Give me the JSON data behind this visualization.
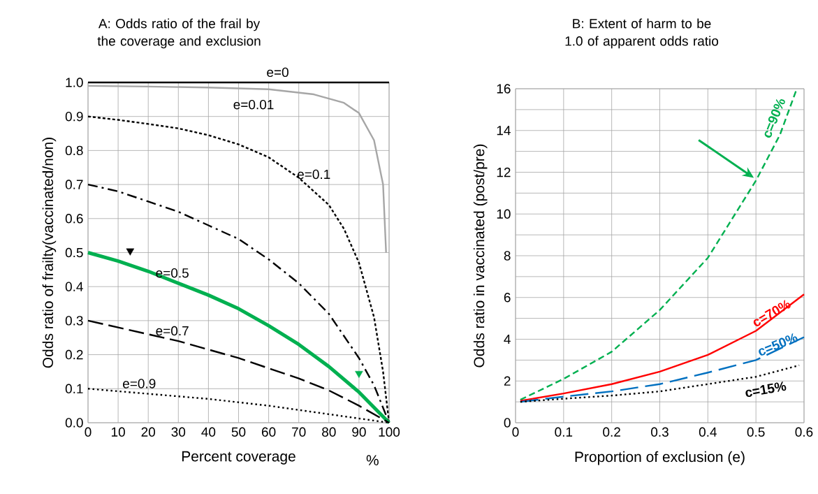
{
  "chart_data": [
    {
      "type": "line",
      "title": "A: Odds ratio of the frail by the coverage and exclusion",
      "xlabel": "Percent coverage",
      "ylabel": "Odds ratio of frailty(vaccinated/non)",
      "annotations": [
        "%"
      ],
      "grid": true,
      "marker": "none",
      "xlim": [
        0,
        100
      ],
      "ylim": [
        0,
        1
      ],
      "xticks": [
        0,
        10,
        20,
        30,
        40,
        50,
        60,
        70,
        80,
        90,
        100
      ],
      "yticks": [
        {
          "value": 0,
          "label": "0.0"
        },
        0.1,
        0.2,
        0.3,
        0.4,
        0.5,
        0.6,
        0.7,
        0.8,
        0.9,
        {
          "value": 1,
          "label": "1.0"
        }
      ],
      "series": [
        {
          "name": "e=0",
          "color": "#000000",
          "line_style": "solid",
          "x": [
            0,
            100
          ],
          "values": [
            1,
            1
          ]
        },
        {
          "name": "e=0.01",
          "color": "#a6a6a6",
          "line_style": "solid",
          "x": [
            0,
            20,
            40,
            60,
            75,
            85,
            90,
            95,
            98,
            99
          ],
          "values": [
            0.99,
            0.988,
            0.985,
            0.98,
            0.965,
            0.94,
            0.91,
            0.83,
            0.7,
            0.5
          ]
        },
        {
          "name": "e=0.1",
          "color": "#000000",
          "line_style": "dashed",
          "x": [
            0,
            10,
            20,
            30,
            40,
            50,
            60,
            70,
            80,
            85,
            90,
            95,
            98,
            100
          ],
          "values": [
            0.9,
            0.89,
            0.878,
            0.865,
            0.845,
            0.818,
            0.78,
            0.72,
            0.64,
            0.57,
            0.47,
            0.31,
            0.15,
            0
          ]
        },
        {
          "color": "#000000",
          "line_style": "dashed",
          "x": [
            0,
            10,
            20,
            30,
            40,
            50,
            60,
            70,
            80,
            90,
            95,
            100
          ],
          "values": [
            0.7,
            0.68,
            0.65,
            0.62,
            0.58,
            0.54,
            0.48,
            0.41,
            0.32,
            0.19,
            0.11,
            0
          ]
        },
        {
          "name": "e=0.5",
          "color": "#00b050",
          "line_style": "solid",
          "x": [
            0,
            10,
            20,
            30,
            40,
            50,
            60,
            70,
            80,
            90,
            100
          ],
          "values": [
            0.5,
            0.475,
            0.445,
            0.41,
            0.375,
            0.335,
            0.285,
            0.23,
            0.165,
            0.09,
            0
          ]
        },
        {
          "name": "e=0.7",
          "color": "#000000",
          "line_style": "dashed",
          "x": [
            0,
            10,
            20,
            30,
            40,
            50,
            60,
            70,
            80,
            90,
            100
          ],
          "values": [
            0.3,
            0.28,
            0.26,
            0.24,
            0.215,
            0.19,
            0.16,
            0.13,
            0.095,
            0.05,
            0
          ]
        },
        {
          "name": "e=0.9",
          "color": "#000000",
          "line_style": "dotted",
          "x": [
            0,
            20,
            40,
            60,
            80,
            100
          ],
          "values": [
            0.1,
            0.085,
            0.07,
            0.05,
            0.025,
            0
          ]
        },
        {
          "type": "scatter",
          "marker": "triangle",
          "color": "#000000",
          "x": [
            14
          ],
          "values": [
            0.505
          ]
        },
        {
          "type": "scatter",
          "marker": "triangle",
          "color": "#00b050",
          "x": [
            90
          ],
          "values": [
            0.145
          ]
        }
      ]
    },
    {
      "type": "line",
      "title": "B: Extent of harm to be 1.0 of apparent odds ratio",
      "xlabel": "Proportion of exclusion (e)",
      "ylabel": "Odds ratio in vaccinated (post/pre)",
      "grid": true,
      "marker": "none",
      "xlim": [
        0,
        0.6
      ],
      "ylim": [
        0,
        16
      ],
      "xticks": [
        0,
        0.1,
        0.2,
        0.3,
        0.4,
        0.5,
        0.6
      ],
      "yticks": [
        0,
        {
          "value": 1,
          "label": null
        },
        2,
        {
          "value": 3,
          "label": null
        },
        4,
        {
          "value": 5,
          "label": null
        },
        6,
        {
          "value": 7,
          "label": null
        },
        8,
        {
          "value": 9,
          "label": null
        },
        10,
        {
          "value": 11,
          "label": null
        },
        12,
        {
          "value": 13,
          "label": null
        },
        14,
        {
          "value": 15,
          "label": null
        },
        16
      ],
      "series": [
        {
          "name": "c=90%",
          "color": "#00b050",
          "line_style": "dashed",
          "x": [
            0.01,
            0.1,
            0.2,
            0.3,
            0.4,
            0.5,
            0.55,
            0.585
          ],
          "values": [
            1.1,
            2.1,
            3.4,
            5.4,
            7.9,
            11.6,
            13.8,
            16
          ]
        },
        {
          "name": "c=70%",
          "color": "#ff0000",
          "line_style": "solid",
          "x": [
            0.01,
            0.1,
            0.2,
            0.3,
            0.4,
            0.5,
            0.6
          ],
          "values": [
            1.05,
            1.4,
            1.85,
            2.45,
            3.25,
            4.4,
            6.15
          ]
        },
        {
          "name": "c=50%",
          "color": "#0070c0",
          "line_style": "dashed",
          "x": [
            0.01,
            0.1,
            0.2,
            0.3,
            0.4,
            0.5,
            0.6
          ],
          "values": [
            1.0,
            1.25,
            1.5,
            1.85,
            2.4,
            3.0,
            4.1
          ]
        },
        {
          "name": "c=15%",
          "color": "#000000",
          "line_style": "dotted",
          "x": [
            0.01,
            0.1,
            0.2,
            0.3,
            0.4,
            0.5,
            0.59
          ],
          "values": [
            1.0,
            1.15,
            1.3,
            1.5,
            1.85,
            2.2,
            2.75
          ]
        }
      ]
    }
  ]
}
